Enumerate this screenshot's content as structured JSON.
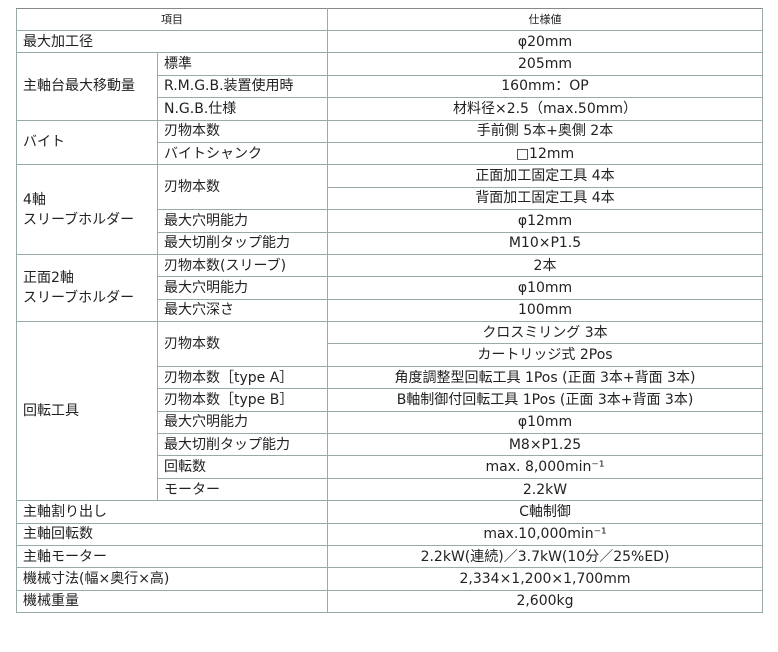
{
  "header": {
    "item": "項目",
    "spec": "仕様値"
  },
  "groups": [
    {
      "label": "最大加工径",
      "values": [
        "φ20mm"
      ]
    },
    {
      "label": "主軸台最大移動量",
      "items": [
        {
          "name": "標準",
          "values": [
            "205mm"
          ]
        },
        {
          "name": "R.M.G.B.装置使用時",
          "values": [
            "160mm：OP"
          ]
        },
        {
          "name": "N.G.B.仕様",
          "values": [
            "材料径×2.5（max.50mm）"
          ]
        }
      ]
    },
    {
      "label": "バイト",
      "items": [
        {
          "name": "刃物本数",
          "values": [
            "手前側 5本+奥側 2本"
          ]
        },
        {
          "name": "バイトシャンク",
          "values": [
            "□12mm"
          ]
        }
      ]
    },
    {
      "label": "4軸\nスリーブホルダー",
      "items": [
        {
          "name": "刃物本数",
          "values": [
            "正面加工固定工具 4本",
            "背面加工固定工具 4本"
          ]
        },
        {
          "name": "最大穴明能力",
          "values": [
            "φ12mm"
          ]
        },
        {
          "name": "最大切削タップ能力",
          "values": [
            "M10×P1.5"
          ]
        }
      ]
    },
    {
      "label": "正面2軸\nスリーブホルダー",
      "items": [
        {
          "name": "刃物本数(スリーブ)",
          "values": [
            "2本"
          ]
        },
        {
          "name": "最大穴明能力",
          "values": [
            "φ10mm"
          ]
        },
        {
          "name": "最大穴深さ",
          "values": [
            "100mm"
          ]
        }
      ]
    },
    {
      "label": "回転工具",
      "items": [
        {
          "name": "刃物本数",
          "values": [
            "クロスミリング 3本",
            "カートリッジ式 2Pos"
          ]
        },
        {
          "name": "刃物本数［type A］",
          "values": [
            "角度調整型回転工具 1Pos (正面 3本+背面 3本)"
          ]
        },
        {
          "name": "刃物本数［type B］",
          "values": [
            "B軸制御付回転工具 1Pos (正面 3本+背面 3本)"
          ]
        },
        {
          "name": "最大穴明能力",
          "values": [
            "φ10mm"
          ]
        },
        {
          "name": "最大切削タップ能力",
          "values": [
            "M8×P1.25"
          ]
        },
        {
          "name": "回転数",
          "values": [
            "max. 8,000min⁻¹"
          ]
        },
        {
          "name": "モーター",
          "values": [
            "2.2kW"
          ]
        }
      ]
    },
    {
      "label": "主軸割り出し",
      "values": [
        "C軸制御"
      ]
    },
    {
      "label": "主軸回転数",
      "values": [
        "max.10,000min⁻¹"
      ]
    },
    {
      "label": "主軸モーター",
      "values": [
        "2.2kW(連続)／3.7kW(10分／25%ED)"
      ]
    },
    {
      "label": "機械寸法(幅×奥行×高)",
      "values": [
        "2,334×1,200×1,700mm"
      ]
    },
    {
      "label": "機械重量",
      "values": [
        "2,600kg"
      ]
    }
  ]
}
